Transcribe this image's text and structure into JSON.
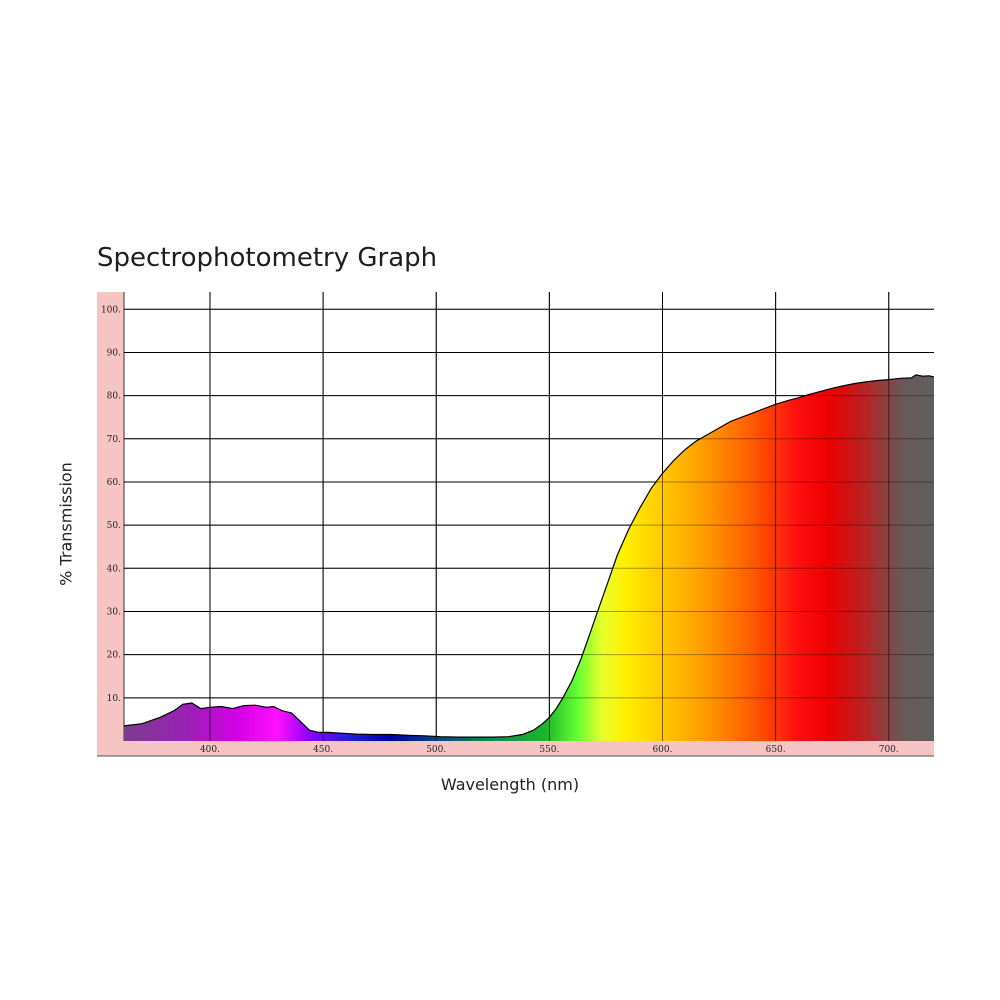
{
  "chart_data": {
    "type": "area",
    "title": "Spectrophotometry Graph",
    "xlabel": "Wavelength (nm)",
    "ylabel": "% Transmission",
    "xlim": [
      362,
      720
    ],
    "ylim": [
      0,
      104
    ],
    "x_ticks": [
      400,
      450,
      500,
      550,
      600,
      650,
      700
    ],
    "x_tick_labels": [
      "400.",
      "450.",
      "500.",
      "550.",
      "600.",
      "650.",
      "700."
    ],
    "y_ticks": [
      10,
      20,
      30,
      40,
      50,
      60,
      70,
      80,
      90,
      100
    ],
    "y_tick_labels": [
      "10.",
      "20.",
      "30.",
      "40.",
      "50.",
      "60.",
      "70.",
      "80.",
      "90.",
      "100."
    ],
    "grid": true,
    "frame_color": "#f7c4c4",
    "line_color": "#000000",
    "series": [
      {
        "x": [
          362,
          370,
          378,
          384,
          388,
          392,
          396,
          400,
          405,
          410,
          415,
          420,
          425,
          428,
          432,
          436,
          440,
          444,
          448,
          452,
          458,
          465,
          472,
          480,
          488,
          495,
          502,
          510,
          518,
          525,
          532,
          538,
          543,
          547,
          550,
          553,
          556,
          560,
          564,
          568,
          572,
          576,
          580,
          585,
          590,
          595,
          600,
          605,
          610,
          615,
          620,
          625,
          630,
          635,
          640,
          645,
          650,
          655,
          660,
          665,
          670,
          675,
          680,
          685,
          690,
          695,
          700,
          705,
          710,
          712,
          715,
          718,
          720
        ],
        "y": [
          3.5,
          4.0,
          5.5,
          7.0,
          8.5,
          8.8,
          7.5,
          7.8,
          8.0,
          7.5,
          8.2,
          8.3,
          7.8,
          8.0,
          7.0,
          6.5,
          4.5,
          2.5,
          2.0,
          2.0,
          1.8,
          1.6,
          1.5,
          1.5,
          1.3,
          1.2,
          1.0,
          0.9,
          0.9,
          0.9,
          1.0,
          1.5,
          2.5,
          4.0,
          5.5,
          7.5,
          10.0,
          14.0,
          19.0,
          25.0,
          31.0,
          37.0,
          43.0,
          49.0,
          54.0,
          58.5,
          62.0,
          65.0,
          67.5,
          69.5,
          71.0,
          72.5,
          74.0,
          75.0,
          76.0,
          77.0,
          78.0,
          78.8,
          79.5,
          80.3,
          81.0,
          81.7,
          82.3,
          82.8,
          83.2,
          83.5,
          83.7,
          84.0,
          84.1,
          84.8,
          84.5,
          84.6,
          84.3
        ]
      }
    ]
  }
}
